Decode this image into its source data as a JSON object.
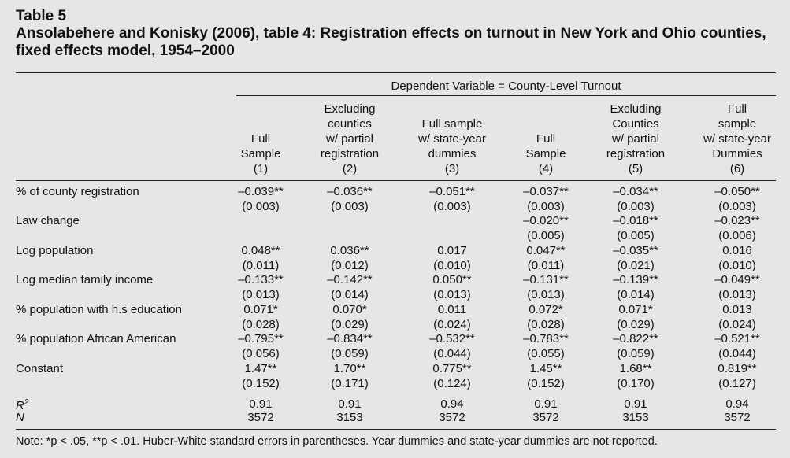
{
  "table_number": "Table 5",
  "title": "Ansolabehere and Konisky (2006), table 4: Registration effects on turnout in New York and Ohio counties, fixed effects model, 1954–2000",
  "dependent_variable": "Dependent Variable = County-Level Turnout",
  "columns": [
    {
      "lines": [
        "Full",
        "Sample",
        "(1)"
      ]
    },
    {
      "lines": [
        "Excluding",
        "counties",
        "w/ partial",
        "registration",
        "(2)"
      ]
    },
    {
      "lines": [
        "Full sample",
        "w/ state-year",
        "dummies",
        "(3)"
      ]
    },
    {
      "lines": [
        "Full",
        "Sample",
        "(4)"
      ]
    },
    {
      "lines": [
        "Excluding",
        "Counties",
        "w/ partial",
        "registration",
        "(5)"
      ]
    },
    {
      "lines": [
        "Full",
        "sample",
        "w/ state-year",
        "Dummies",
        "(6)"
      ]
    }
  ],
  "rows": [
    {
      "label": "% of county registration",
      "coef": [
        "–0.039**",
        "–0.036**",
        "–0.051**",
        "–0.037**",
        "–0.034**",
        "–0.050**"
      ],
      "se": [
        "(0.003)",
        "(0.003)",
        "(0.003)",
        "(0.003)",
        "(0.003)",
        "(0.003)"
      ]
    },
    {
      "label": "Law change",
      "coef": [
        "",
        "",
        "",
        "–0.020**",
        "–0.018**",
        "–0.023**"
      ],
      "se": [
        "",
        "",
        "",
        "(0.005)",
        "(0.005)",
        "(0.006)"
      ]
    },
    {
      "label": "Log population",
      "coef": [
        "0.048**",
        "0.036**",
        "0.017",
        "0.047**",
        "–0.035**",
        "0.016"
      ],
      "se": [
        "(0.011)",
        "(0.012)",
        "(0.010)",
        "(0.011)",
        "(0.021)",
        "(0.010)"
      ]
    },
    {
      "label": "Log median family income",
      "coef": [
        "–0.133**",
        "–0.142**",
        "0.050**",
        "–0.131**",
        "–0.139**",
        "–0.049**"
      ],
      "se": [
        "(0.013)",
        "(0.014)",
        "(0.013)",
        "(0.013)",
        "(0.014)",
        "(0.013)"
      ]
    },
    {
      "label": "% population with h.s education",
      "coef": [
        "0.071*",
        "0.070*",
        "0.011",
        "0.072*",
        "0.071*",
        "0.013"
      ],
      "se": [
        "(0.028)",
        "(0.029)",
        "(0.024)",
        "(0.028)",
        "(0.029)",
        "(0.024)"
      ]
    },
    {
      "label": "% population African American",
      "coef": [
        "–0.795**",
        "–0.834**",
        "–0.532**",
        "–0.783**",
        "–0.822**",
        "–0.521**"
      ],
      "se": [
        "(0.056)",
        "(0.059)",
        "(0.044)",
        "(0.055)",
        "(0.059)",
        "(0.044)"
      ]
    },
    {
      "label": "Constant",
      "coef": [
        "1.47**",
        "1.70**",
        "0.775**",
        "1.45**",
        "1.68**",
        "0.819**"
      ],
      "se": [
        "(0.152)",
        "(0.171)",
        "(0.124)",
        "(0.152)",
        "(0.170)",
        "(0.127)"
      ]
    }
  ],
  "r2": {
    "label": "R",
    "sup": "2",
    "values": [
      "0.91",
      "0.91",
      "0.94",
      "0.91",
      "0.91",
      "0.94"
    ]
  },
  "n": {
    "label": "N",
    "values": [
      "3572",
      "3153",
      "3572",
      "3572",
      "3153",
      "3572"
    ]
  },
  "note": "Note: *p < .05, **p < .01. Huber-White standard errors in parentheses. Year dummies and state-year dummies are not reported."
}
